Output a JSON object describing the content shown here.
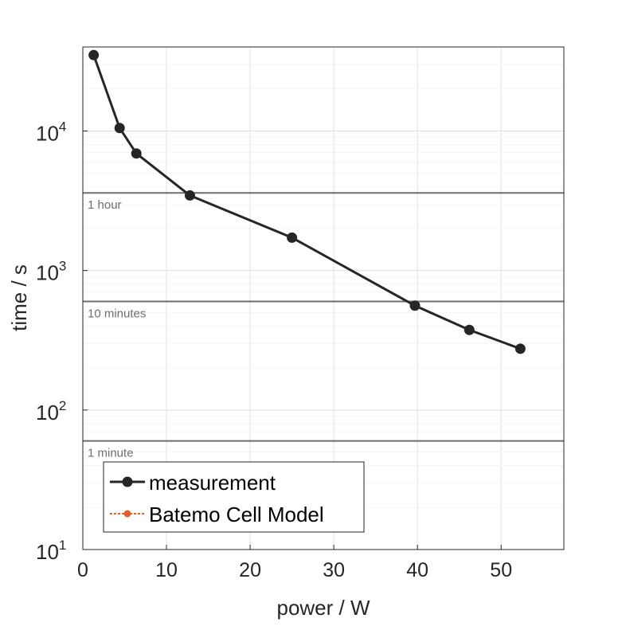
{
  "chart_data": {
    "type": "line",
    "xlabel": "power / W",
    "ylabel": "time / s",
    "xscale": "linear",
    "yscale": "log",
    "xlim": [
      0,
      57.5
    ],
    "ylim": [
      10,
      40000
    ],
    "xticks": [
      0,
      10,
      20,
      30,
      40,
      50
    ],
    "xtick_labels": [
      "0",
      "10",
      "20",
      "30",
      "40",
      "50"
    ],
    "yticks": [
      10,
      100,
      1000,
      10000
    ],
    "ytick_labels": [
      {
        "base": "10",
        "exp": "1"
      },
      {
        "base": "10",
        "exp": "2"
      },
      {
        "base": "10",
        "exp": "3"
      },
      {
        "base": "10",
        "exp": "4"
      }
    ],
    "grid": true,
    "series": [
      {
        "name": "measurement",
        "color": "#262626",
        "marker": "circle",
        "x": [
          1.3,
          4.4,
          6.4,
          12.8,
          25.0,
          39.7,
          46.2,
          52.3
        ],
        "y": [
          35000,
          10500,
          6900,
          3450,
          1720,
          560,
          375,
          275
        ]
      }
    ],
    "reference_lines": [
      {
        "label": "1 hour",
        "y": 3600,
        "color": "#6e6e6e"
      },
      {
        "label": "10 minutes",
        "y": 600,
        "color": "#6e6e6e"
      },
      {
        "label": "1 minute",
        "y": 60,
        "color": "#6e6e6e"
      }
    ],
    "legend": {
      "position": "bottom-left",
      "entries": [
        {
          "label": "measurement",
          "color": "#262626",
          "style": "solid"
        },
        {
          "label": "Batemo Cell Model",
          "color": "#e0622a",
          "style": "dotted"
        }
      ]
    }
  }
}
